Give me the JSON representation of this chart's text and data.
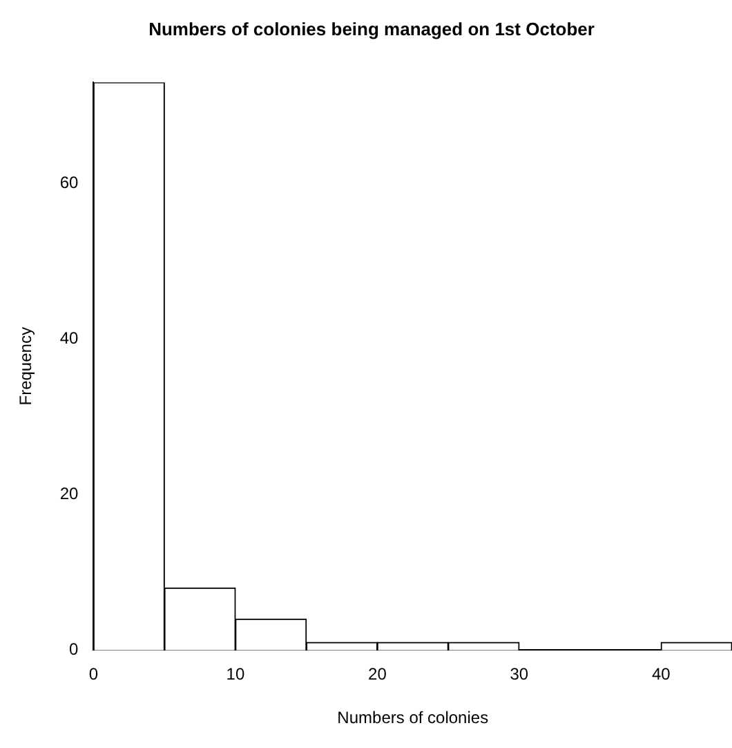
{
  "chart_data": {
    "type": "histogram",
    "title": "Numbers of colonies being managed on 1st October",
    "xlabel": "Numbers of colonies",
    "ylabel": "Frequency",
    "bins": [
      0,
      5,
      10,
      15,
      20,
      25,
      30,
      35,
      40,
      45
    ],
    "values": [
      73,
      8,
      4,
      1,
      1,
      1,
      0,
      0,
      1
    ],
    "color": "#ffffff",
    "xlim": [
      0,
      45
    ],
    "ylim": [
      0,
      73
    ],
    "xticks": [
      0,
      10,
      20,
      30,
      40
    ],
    "yticks": [
      0,
      20,
      40,
      60
    ]
  }
}
